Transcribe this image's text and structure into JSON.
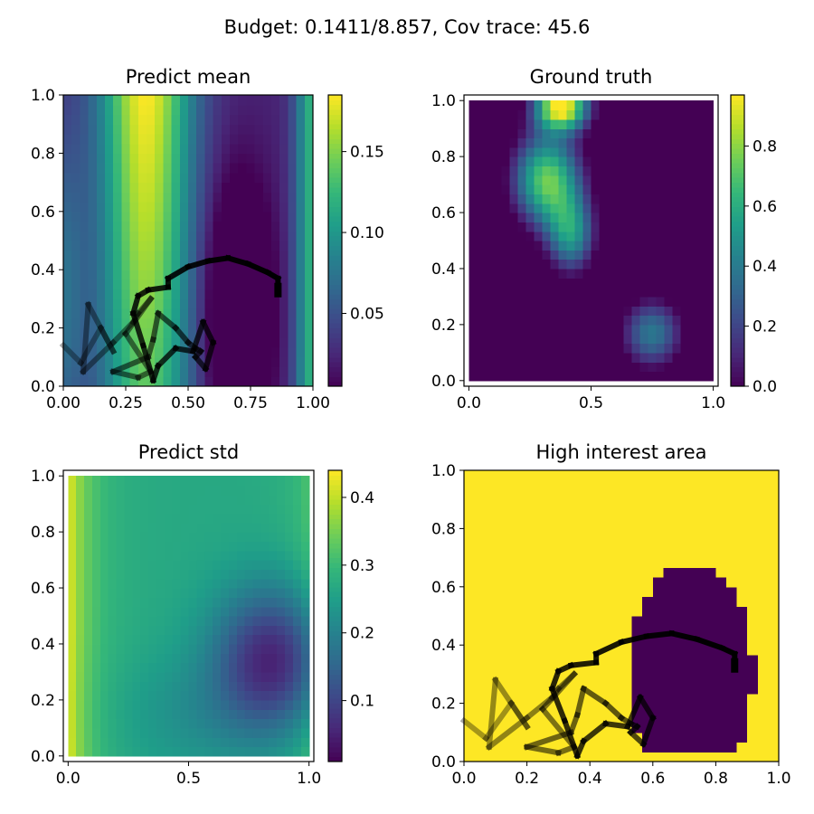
{
  "figure": {
    "suptitle": "Budget: 0.1411/8.857,  Cov trace: 45.6"
  },
  "colors": {
    "viridis": [
      "#440154",
      "#482878",
      "#3e4989",
      "#31688e",
      "#26828e",
      "#1f9e89",
      "#35b779",
      "#6ece58",
      "#b5de2b",
      "#fde725"
    ],
    "path": "#000000"
  },
  "chart_data": [
    {
      "id": "predict-mean",
      "type": "heatmap",
      "title": "Predict mean",
      "grid_size": 30,
      "xlim": [
        0,
        1
      ],
      "ylim": [
        0,
        1
      ],
      "xticks": [
        "0.00",
        "0.25",
        "0.50",
        "0.75",
        "1.00"
      ],
      "yticks": [
        "0.0",
        "0.2",
        "0.4",
        "0.6",
        "0.8",
        "1.0"
      ],
      "colorbar": {
        "min": 0.005,
        "max": 0.185,
        "ticks": [
          0.05,
          0.1,
          0.15
        ],
        "tick_labels": [
          "0.05",
          "0.10",
          "0.15"
        ]
      },
      "field": "mean",
      "show_path": true
    },
    {
      "id": "ground-truth",
      "type": "heatmap",
      "title": "Ground truth",
      "grid_size": 30,
      "xlim": [
        -0.02,
        1.02
      ],
      "ylim": [
        -0.02,
        1.02
      ],
      "xticks": [
        "0.0",
        "0.5",
        "1.0"
      ],
      "yticks": [
        "0.0",
        "0.2",
        "0.4",
        "0.6",
        "0.8",
        "1.0"
      ],
      "colorbar": {
        "min": 0,
        "max": 0.97,
        "ticks": [
          0.0,
          0.2,
          0.4,
          0.6,
          0.8
        ],
        "tick_labels": [
          "0.0",
          "0.2",
          "0.4",
          "0.6",
          "0.8"
        ]
      },
      "field": "truth",
      "show_path": false
    },
    {
      "id": "predict-std",
      "type": "heatmap",
      "title": "Predict std",
      "grid_size": 30,
      "xlim": [
        -0.02,
        1.02
      ],
      "ylim": [
        -0.02,
        1.02
      ],
      "xticks": [
        "0.0",
        "0.5",
        "1.0"
      ],
      "yticks": [
        "0.0",
        "0.2",
        "0.4",
        "0.6",
        "0.8",
        "1.0"
      ],
      "colorbar": {
        "min": 0.01,
        "max": 0.44,
        "ticks": [
          0.1,
          0.2,
          0.3,
          0.4
        ],
        "tick_labels": [
          "0.1",
          "0.2",
          "0.3",
          "0.4"
        ]
      },
      "field": "std",
      "show_path": false
    },
    {
      "id": "high-interest-area",
      "type": "heatmap",
      "title": "High interest area",
      "grid_size": 30,
      "xlim": [
        0,
        1
      ],
      "ylim": [
        0,
        1
      ],
      "xticks": [
        "0.0",
        "0.2",
        "0.4",
        "0.6",
        "0.8",
        "1.0"
      ],
      "yticks": [
        "0.0",
        "0.2",
        "0.4",
        "0.6",
        "0.8",
        "1.0"
      ],
      "colorbar": null,
      "field": "interest",
      "show_path": true
    }
  ],
  "path": [
    [
      0.0,
      0.14
    ],
    [
      0.07,
      0.08
    ],
    [
      0.15,
      0.2
    ],
    [
      0.2,
      0.12
    ],
    [
      0.1,
      0.28
    ],
    [
      0.08,
      0.05
    ],
    [
      0.2,
      0.15
    ],
    [
      0.28,
      0.22
    ],
    [
      0.3,
      0.25
    ],
    [
      0.35,
      0.3
    ],
    [
      0.25,
      0.18
    ],
    [
      0.35,
      0.05
    ],
    [
      0.3,
      0.03
    ],
    [
      0.2,
      0.05
    ],
    [
      0.34,
      0.1
    ],
    [
      0.36,
      0.16
    ],
    [
      0.38,
      0.25
    ],
    [
      0.45,
      0.2
    ],
    [
      0.5,
      0.15
    ],
    [
      0.53,
      0.13
    ],
    [
      0.55,
      0.12
    ],
    [
      0.53,
      0.1
    ],
    [
      0.57,
      0.06
    ],
    [
      0.6,
      0.15
    ],
    [
      0.56,
      0.22
    ],
    [
      0.52,
      0.12
    ],
    [
      0.45,
      0.13
    ],
    [
      0.38,
      0.07
    ],
    [
      0.36,
      0.02
    ],
    [
      0.32,
      0.14
    ],
    [
      0.28,
      0.25
    ],
    [
      0.3,
      0.31
    ],
    [
      0.34,
      0.33
    ],
    [
      0.42,
      0.34
    ],
    [
      0.42,
      0.37
    ],
    [
      0.5,
      0.41
    ],
    [
      0.58,
      0.43
    ],
    [
      0.66,
      0.44
    ],
    [
      0.74,
      0.42
    ],
    [
      0.82,
      0.39
    ],
    [
      0.86,
      0.37
    ],
    [
      0.86,
      0.33
    ]
  ]
}
